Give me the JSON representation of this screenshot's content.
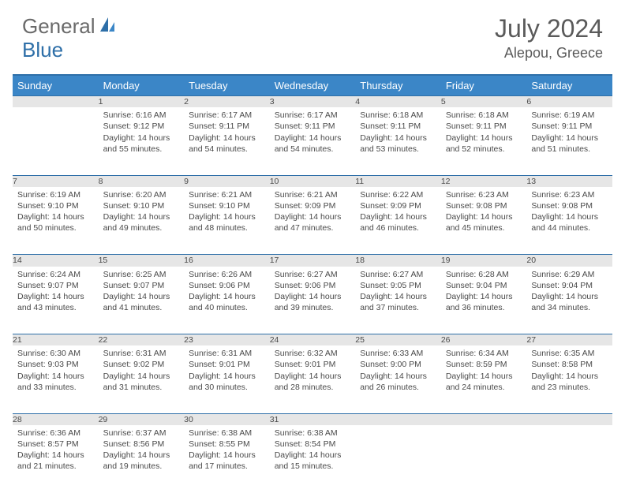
{
  "logo": {
    "word1": "General",
    "word2": "Blue"
  },
  "title": "July 2024",
  "location": "Alepou, Greece",
  "colors": {
    "header_bg": "#3b86c7",
    "header_border": "#2e6fa8",
    "daynum_bg": "#e6e6e6",
    "text": "#4a4a4a",
    "title_text": "#5a5a5a"
  },
  "weekdays": [
    "Sunday",
    "Monday",
    "Tuesday",
    "Wednesday",
    "Thursday",
    "Friday",
    "Saturday"
  ],
  "weeks": [
    [
      {
        "n": "",
        "lines": [
          "",
          "",
          "",
          ""
        ]
      },
      {
        "n": "1",
        "lines": [
          "Sunrise: 6:16 AM",
          "Sunset: 9:12 PM",
          "Daylight: 14 hours",
          "and 55 minutes."
        ]
      },
      {
        "n": "2",
        "lines": [
          "Sunrise: 6:17 AM",
          "Sunset: 9:11 PM",
          "Daylight: 14 hours",
          "and 54 minutes."
        ]
      },
      {
        "n": "3",
        "lines": [
          "Sunrise: 6:17 AM",
          "Sunset: 9:11 PM",
          "Daylight: 14 hours",
          "and 54 minutes."
        ]
      },
      {
        "n": "4",
        "lines": [
          "Sunrise: 6:18 AM",
          "Sunset: 9:11 PM",
          "Daylight: 14 hours",
          "and 53 minutes."
        ]
      },
      {
        "n": "5",
        "lines": [
          "Sunrise: 6:18 AM",
          "Sunset: 9:11 PM",
          "Daylight: 14 hours",
          "and 52 minutes."
        ]
      },
      {
        "n": "6",
        "lines": [
          "Sunrise: 6:19 AM",
          "Sunset: 9:11 PM",
          "Daylight: 14 hours",
          "and 51 minutes."
        ]
      }
    ],
    [
      {
        "n": "7",
        "lines": [
          "Sunrise: 6:19 AM",
          "Sunset: 9:10 PM",
          "Daylight: 14 hours",
          "and 50 minutes."
        ]
      },
      {
        "n": "8",
        "lines": [
          "Sunrise: 6:20 AM",
          "Sunset: 9:10 PM",
          "Daylight: 14 hours",
          "and 49 minutes."
        ]
      },
      {
        "n": "9",
        "lines": [
          "Sunrise: 6:21 AM",
          "Sunset: 9:10 PM",
          "Daylight: 14 hours",
          "and 48 minutes."
        ]
      },
      {
        "n": "10",
        "lines": [
          "Sunrise: 6:21 AM",
          "Sunset: 9:09 PM",
          "Daylight: 14 hours",
          "and 47 minutes."
        ]
      },
      {
        "n": "11",
        "lines": [
          "Sunrise: 6:22 AM",
          "Sunset: 9:09 PM",
          "Daylight: 14 hours",
          "and 46 minutes."
        ]
      },
      {
        "n": "12",
        "lines": [
          "Sunrise: 6:23 AM",
          "Sunset: 9:08 PM",
          "Daylight: 14 hours",
          "and 45 minutes."
        ]
      },
      {
        "n": "13",
        "lines": [
          "Sunrise: 6:23 AM",
          "Sunset: 9:08 PM",
          "Daylight: 14 hours",
          "and 44 minutes."
        ]
      }
    ],
    [
      {
        "n": "14",
        "lines": [
          "Sunrise: 6:24 AM",
          "Sunset: 9:07 PM",
          "Daylight: 14 hours",
          "and 43 minutes."
        ]
      },
      {
        "n": "15",
        "lines": [
          "Sunrise: 6:25 AM",
          "Sunset: 9:07 PM",
          "Daylight: 14 hours",
          "and 41 minutes."
        ]
      },
      {
        "n": "16",
        "lines": [
          "Sunrise: 6:26 AM",
          "Sunset: 9:06 PM",
          "Daylight: 14 hours",
          "and 40 minutes."
        ]
      },
      {
        "n": "17",
        "lines": [
          "Sunrise: 6:27 AM",
          "Sunset: 9:06 PM",
          "Daylight: 14 hours",
          "and 39 minutes."
        ]
      },
      {
        "n": "18",
        "lines": [
          "Sunrise: 6:27 AM",
          "Sunset: 9:05 PM",
          "Daylight: 14 hours",
          "and 37 minutes."
        ]
      },
      {
        "n": "19",
        "lines": [
          "Sunrise: 6:28 AM",
          "Sunset: 9:04 PM",
          "Daylight: 14 hours",
          "and 36 minutes."
        ]
      },
      {
        "n": "20",
        "lines": [
          "Sunrise: 6:29 AM",
          "Sunset: 9:04 PM",
          "Daylight: 14 hours",
          "and 34 minutes."
        ]
      }
    ],
    [
      {
        "n": "21",
        "lines": [
          "Sunrise: 6:30 AM",
          "Sunset: 9:03 PM",
          "Daylight: 14 hours",
          "and 33 minutes."
        ]
      },
      {
        "n": "22",
        "lines": [
          "Sunrise: 6:31 AM",
          "Sunset: 9:02 PM",
          "Daylight: 14 hours",
          "and 31 minutes."
        ]
      },
      {
        "n": "23",
        "lines": [
          "Sunrise: 6:31 AM",
          "Sunset: 9:01 PM",
          "Daylight: 14 hours",
          "and 30 minutes."
        ]
      },
      {
        "n": "24",
        "lines": [
          "Sunrise: 6:32 AM",
          "Sunset: 9:01 PM",
          "Daylight: 14 hours",
          "and 28 minutes."
        ]
      },
      {
        "n": "25",
        "lines": [
          "Sunrise: 6:33 AM",
          "Sunset: 9:00 PM",
          "Daylight: 14 hours",
          "and 26 minutes."
        ]
      },
      {
        "n": "26",
        "lines": [
          "Sunrise: 6:34 AM",
          "Sunset: 8:59 PM",
          "Daylight: 14 hours",
          "and 24 minutes."
        ]
      },
      {
        "n": "27",
        "lines": [
          "Sunrise: 6:35 AM",
          "Sunset: 8:58 PM",
          "Daylight: 14 hours",
          "and 23 minutes."
        ]
      }
    ],
    [
      {
        "n": "28",
        "lines": [
          "Sunrise: 6:36 AM",
          "Sunset: 8:57 PM",
          "Daylight: 14 hours",
          "and 21 minutes."
        ]
      },
      {
        "n": "29",
        "lines": [
          "Sunrise: 6:37 AM",
          "Sunset: 8:56 PM",
          "Daylight: 14 hours",
          "and 19 minutes."
        ]
      },
      {
        "n": "30",
        "lines": [
          "Sunrise: 6:38 AM",
          "Sunset: 8:55 PM",
          "Daylight: 14 hours",
          "and 17 minutes."
        ]
      },
      {
        "n": "31",
        "lines": [
          "Sunrise: 6:38 AM",
          "Sunset: 8:54 PM",
          "Daylight: 14 hours",
          "and 15 minutes."
        ]
      },
      {
        "n": "",
        "lines": [
          "",
          "",
          "",
          ""
        ]
      },
      {
        "n": "",
        "lines": [
          "",
          "",
          "",
          ""
        ]
      },
      {
        "n": "",
        "lines": [
          "",
          "",
          "",
          ""
        ]
      }
    ]
  ]
}
